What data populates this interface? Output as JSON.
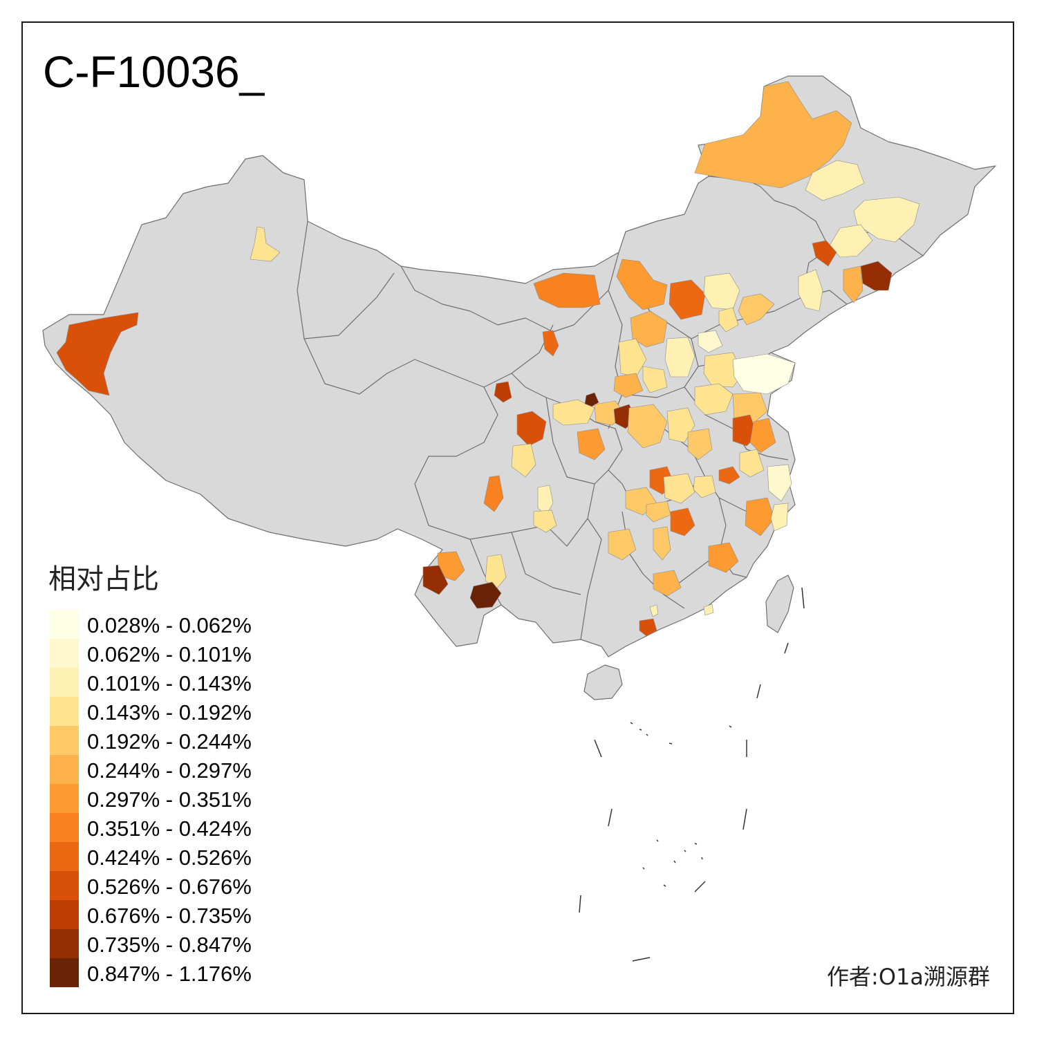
{
  "title": "C-F10036_",
  "legend": {
    "title": "相对占比",
    "items": [
      {
        "label": "0.028% - 0.062%",
        "color": "#ffffe5"
      },
      {
        "label": "0.062% - 0.101%",
        "color": "#fff8cf"
      },
      {
        "label": "0.101% - 0.143%",
        "color": "#fff0b4"
      },
      {
        "label": "0.143% - 0.192%",
        "color": "#fee391"
      },
      {
        "label": "0.192% - 0.244%",
        "color": "#fec966"
      },
      {
        "label": "0.244% - 0.297%",
        "color": "#feb24c"
      },
      {
        "label": "0.297% - 0.351%",
        "color": "#fd9a30"
      },
      {
        "label": "0.351% - 0.424%",
        "color": "#f7821f"
      },
      {
        "label": "0.424% - 0.526%",
        "color": "#ec6813"
      },
      {
        "label": "0.526% - 0.676%",
        "color": "#d95009"
      },
      {
        "label": "0.676% - 0.735%",
        "color": "#bd3d04"
      },
      {
        "label": "0.735% - 0.847%",
        "color": "#952f03"
      },
      {
        "label": "0.847% - 1.176%",
        "color": "#6a2306"
      }
    ]
  },
  "credit": "作者:O1a溯源群",
  "colors": {
    "land": "#d9d9d9",
    "border": "#6e6e6e"
  }
}
